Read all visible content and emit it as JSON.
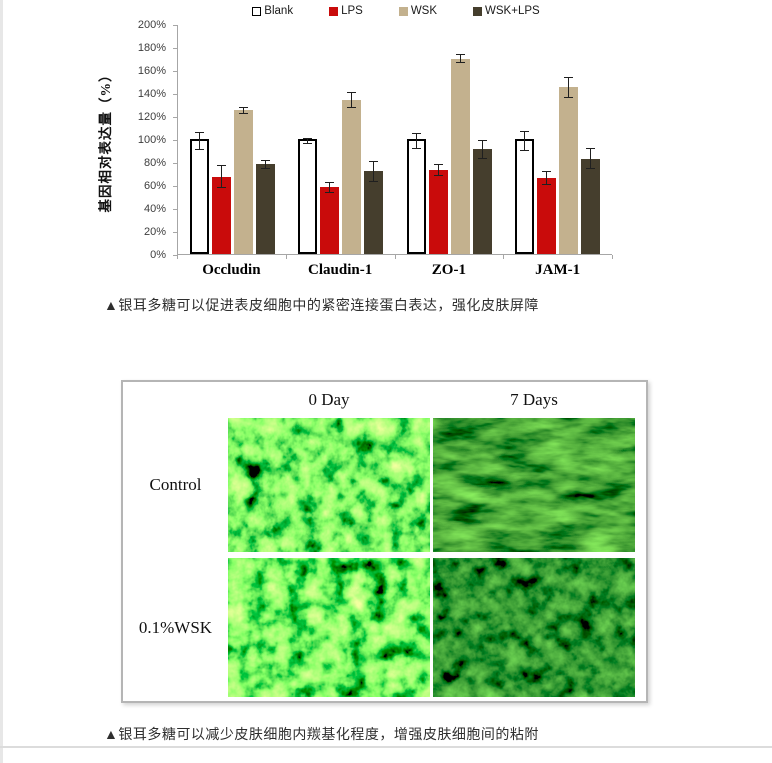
{
  "captions": {
    "chart": "▲银耳多糖可以促进表皮细胞中的紧密连接蛋白表达，强化皮肤屏障",
    "micrograph": "▲银耳多糖可以减少皮肤细胞内羰基化程度，增强皮肤细胞间的粘附"
  },
  "chart_data": {
    "type": "bar",
    "title": "",
    "xlabel": "",
    "ylabel": "基因相对表达量（%）",
    "ylim": [
      0,
      200
    ],
    "ytick_step": 20,
    "ytick_suffix": "%",
    "grid": false,
    "legend_position": "top",
    "categories": [
      "Occludin",
      "Claudin-1",
      "ZO-1",
      "JAM-1"
    ],
    "series": [
      {
        "name": "Blank",
        "fill": "#ffffff",
        "border": "#000000",
        "values": [
          100,
          100,
          100,
          100
        ],
        "errors": [
          8,
          3,
          7,
          9
        ]
      },
      {
        "name": "LPS",
        "fill": "#c90b0b",
        "values": [
          67,
          58,
          73,
          66
        ],
        "errors": [
          10,
          5,
          5,
          6
        ]
      },
      {
        "name": "WSK",
        "fill": "#c3b18e",
        "values": [
          125,
          134,
          170,
          145
        ],
        "errors": [
          3,
          7,
          4,
          9
        ]
      },
      {
        "name": "WSK+LPS",
        "fill": "#453e2d",
        "values": [
          78,
          72,
          91,
          83
        ],
        "errors": [
          4,
          9,
          8,
          9
        ]
      }
    ]
  },
  "micrograph_panel": {
    "col_headers": [
      "0 Day",
      "7 Days"
    ],
    "row_labels": [
      "Control",
      "0.1%WSK"
    ]
  }
}
